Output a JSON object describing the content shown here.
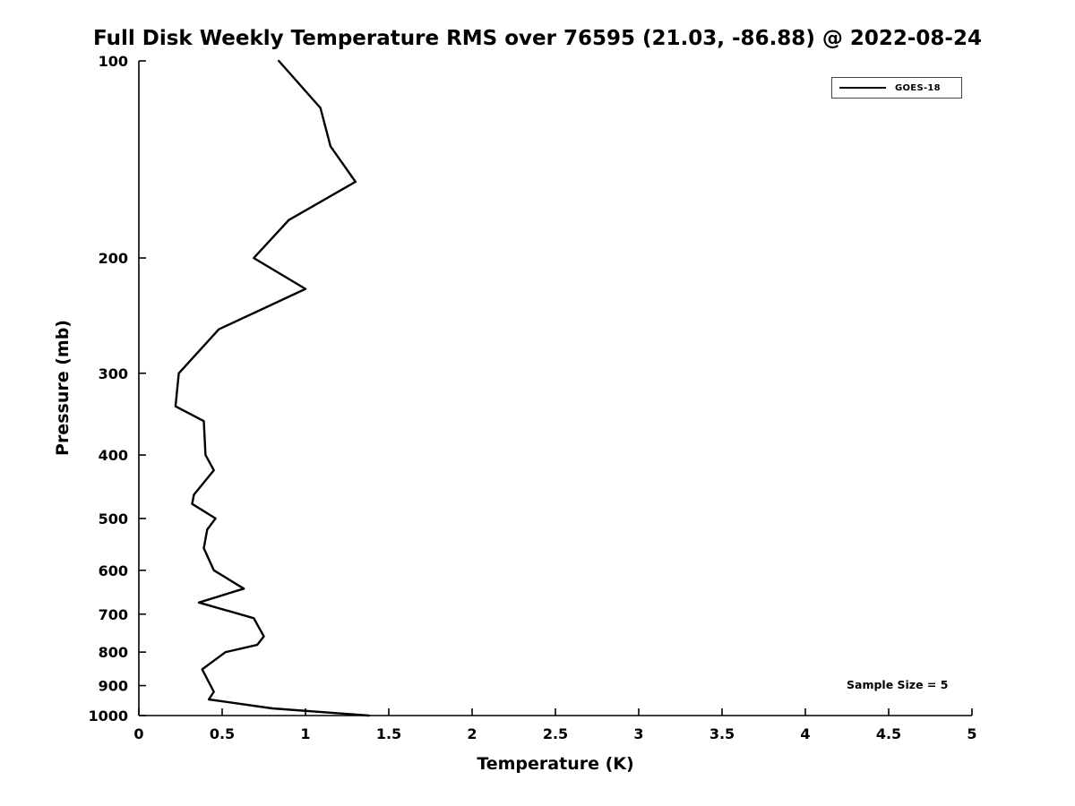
{
  "chart_data": {
    "type": "line",
    "title": "Full Disk Weekly Temperature RMS over 76595 (21.03, -86.88) @ 2022-08-24",
    "xlabel": "Temperature (K)",
    "ylabel": "Pressure (mb)",
    "xlim": [
      0,
      5
    ],
    "ylim": [
      100,
      1000
    ],
    "yscale": "log",
    "y_inverted": true,
    "grid": false,
    "xticks": [
      0,
      0.5,
      1,
      1.5,
      2,
      2.5,
      3,
      3.5,
      4,
      4.5,
      5
    ],
    "xticklabels": [
      "0",
      "0.5",
      "1",
      "1.5",
      "2",
      "2.5",
      "3",
      "3.5",
      "4",
      "4.5",
      "5"
    ],
    "yticks": [
      100,
      200,
      300,
      400,
      500,
      600,
      700,
      800,
      900,
      1000
    ],
    "yticklabels": [
      "100",
      "200",
      "300",
      "400",
      "500",
      "600",
      "700",
      "800",
      "900",
      "1000"
    ],
    "legend": {
      "position": "top-right",
      "entries": [
        "GOES-18"
      ]
    },
    "annotation": "Sample Size = 5",
    "series": [
      {
        "name": "GOES-18",
        "color": "#000000",
        "pressure_mb": [
          100,
          118,
          135,
          153,
          175,
          200,
          223,
          257,
          300,
          337,
          355,
          400,
          422,
          460,
          475,
          500,
          520,
          555,
          600,
          640,
          672,
          710,
          757,
          780,
          800,
          850,
          920,
          945,
          975,
          1000
        ],
        "rms_k": [
          0.84,
          1.09,
          1.15,
          1.3,
          0.9,
          0.69,
          1.0,
          0.48,
          0.24,
          0.22,
          0.39,
          0.4,
          0.45,
          0.33,
          0.32,
          0.46,
          0.41,
          0.39,
          0.45,
          0.63,
          0.36,
          0.69,
          0.75,
          0.71,
          0.52,
          0.38,
          0.45,
          0.42,
          0.8,
          1.38
        ]
      }
    ]
  }
}
